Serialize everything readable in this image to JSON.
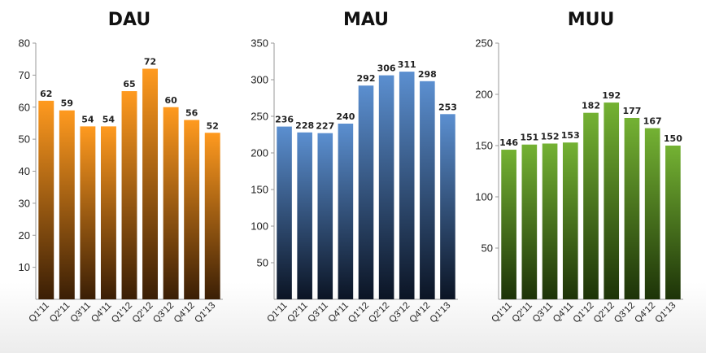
{
  "chart_data": [
    {
      "type": "bar",
      "title": "DAU",
      "categories": [
        "Q1'11",
        "Q2'11",
        "Q3'11",
        "Q4'11",
        "Q1'12",
        "Q2'12",
        "Q3'12",
        "Q4'12",
        "Q1'13"
      ],
      "values": [
        62,
        59,
        54,
        54,
        65,
        72,
        60,
        56,
        52
      ],
      "ylim": [
        0,
        80
      ],
      "yticks": [
        10,
        20,
        30,
        40,
        50,
        60,
        70,
        80
      ],
      "colors": {
        "top": "#ff9a1f",
        "bottom": "#3a1e05"
      },
      "grid": false,
      "data_labels": true
    },
    {
      "type": "bar",
      "title": "MAU",
      "categories": [
        "Q1'11",
        "Q2'11",
        "Q3'11",
        "Q4'11",
        "Q1'12",
        "Q2'12",
        "Q3'12",
        "Q4'12",
        "Q1'13"
      ],
      "values": [
        236,
        228,
        227,
        240,
        292,
        306,
        311,
        298,
        253
      ],
      "ylim": [
        0,
        350
      ],
      "yticks": [
        50,
        100,
        150,
        200,
        250,
        300,
        350
      ],
      "colors": {
        "top": "#5b8fd0",
        "bottom": "#0b1424"
      },
      "grid": false,
      "data_labels": true
    },
    {
      "type": "bar",
      "title": "MUU",
      "categories": [
        "Q1'11",
        "Q2'11",
        "Q3'11",
        "Q4'11",
        "Q1'12",
        "Q2'12",
        "Q3'12",
        "Q4'12",
        "Q1'13"
      ],
      "values": [
        146,
        151,
        152,
        153,
        182,
        192,
        177,
        167,
        150
      ],
      "ylim": [
        0,
        250
      ],
      "yticks": [
        50,
        100,
        150,
        200,
        250
      ],
      "colors": {
        "top": "#74b233",
        "bottom": "#1d3308"
      },
      "grid": false,
      "data_labels": true
    }
  ]
}
